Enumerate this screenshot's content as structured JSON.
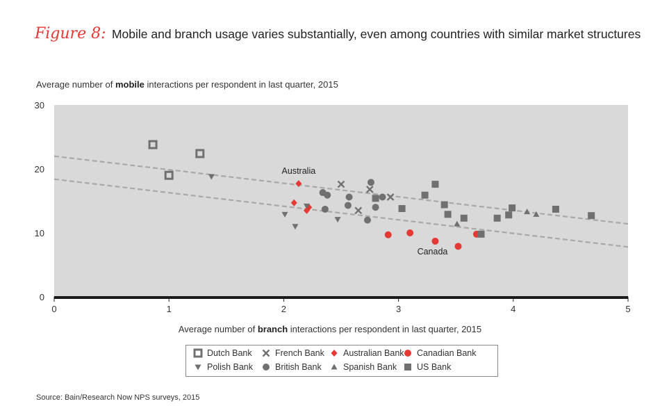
{
  "figure": {
    "label": "Figure 8:",
    "title": "Mobile and branch usage varies substantially, even among countries with similar market structures"
  },
  "axis_text": {
    "y_pre": "Average number of ",
    "y_bold": "mobile",
    "y_post": " interactions per respondent in last quarter, 2015",
    "x_pre": "Average number of ",
    "x_bold": "branch",
    "x_post": " interactions per respondent in last quarter, 2015"
  },
  "source": "Source: Bain/Research Now NPS surveys, 2015",
  "colors": {
    "plot_bg": "#d9d9d9",
    "gray_marker": "#707070",
    "red_marker": "#e53935",
    "trend": "#a8a8a8"
  },
  "chart_data": {
    "type": "scatter",
    "title": "Mobile and branch usage varies substantially, even among countries with similar market structures",
    "xlabel": "Average number of branch interactions per respondent in last quarter, 2015",
    "ylabel": "Average number of mobile interactions per respondent in last quarter, 2015",
    "xlim": [
      0,
      5
    ],
    "ylim": [
      0,
      30
    ],
    "xticks": [
      0,
      1,
      2,
      3,
      4,
      5
    ],
    "yticks": [
      0,
      10,
      20,
      30
    ],
    "grid": false,
    "legend_position": "bottom",
    "series": [
      {
        "name": "Dutch Bank",
        "marker": "square-open",
        "color": "#707070",
        "points": [
          [
            0.86,
            23.8
          ],
          [
            1.0,
            19.0
          ],
          [
            1.27,
            22.4
          ]
        ]
      },
      {
        "name": "French Bank",
        "marker": "x",
        "color": "#707070",
        "points": [
          [
            2.5,
            17.6
          ],
          [
            2.75,
            16.8
          ],
          [
            2.65,
            13.5
          ],
          [
            2.93,
            15.6
          ]
        ]
      },
      {
        "name": "Australian Bank",
        "marker": "diamond",
        "color": "#e53935",
        "points": [
          [
            2.13,
            17.7
          ],
          [
            2.09,
            14.7
          ],
          [
            2.22,
            14.0
          ],
          [
            2.2,
            13.5
          ]
        ]
      },
      {
        "name": "Canadian Bank",
        "marker": "circle",
        "color": "#e53935",
        "points": [
          [
            2.91,
            9.7
          ],
          [
            3.1,
            10.0
          ],
          [
            3.32,
            8.7
          ],
          [
            3.52,
            7.9
          ],
          [
            3.68,
            9.8
          ]
        ]
      },
      {
        "name": "Polish Bank",
        "marker": "triangle-down",
        "color": "#707070",
        "points": [
          [
            1.37,
            18.8
          ],
          [
            2.01,
            12.9
          ],
          [
            2.1,
            11.0
          ],
          [
            2.2,
            14.2
          ],
          [
            2.47,
            12.1
          ]
        ]
      },
      {
        "name": "British Bank",
        "marker": "circle",
        "color": "#707070",
        "points": [
          [
            2.34,
            16.3
          ],
          [
            2.38,
            15.9
          ],
          [
            2.36,
            13.7
          ],
          [
            2.57,
            15.6
          ],
          [
            2.56,
            14.3
          ],
          [
            2.76,
            17.9
          ],
          [
            2.86,
            15.6
          ],
          [
            2.8,
            14.0
          ],
          [
            2.73,
            12.0
          ]
        ]
      },
      {
        "name": "Spanish Bank",
        "marker": "triangle-up",
        "color": "#707070",
        "points": [
          [
            3.51,
            11.4
          ],
          [
            4.12,
            13.3
          ],
          [
            4.2,
            12.9
          ]
        ]
      },
      {
        "name": "US Bank",
        "marker": "square",
        "color": "#707070",
        "points": [
          [
            2.8,
            15.4
          ],
          [
            3.03,
            13.8
          ],
          [
            3.23,
            15.9
          ],
          [
            3.32,
            17.6
          ],
          [
            3.4,
            14.4
          ],
          [
            3.43,
            12.9
          ],
          [
            3.57,
            12.3
          ],
          [
            3.72,
            9.8
          ],
          [
            3.86,
            12.3
          ],
          [
            3.96,
            12.8
          ],
          [
            3.99,
            13.9
          ],
          [
            4.37,
            13.7
          ],
          [
            4.68,
            12.7
          ]
        ]
      }
    ],
    "trendlines": [
      {
        "from": [
          0,
          22.0
        ],
        "to": [
          5,
          11.4
        ]
      },
      {
        "from": [
          0,
          18.4
        ],
        "to": [
          5,
          7.8
        ]
      }
    ],
    "annotations": [
      {
        "text": "Australia",
        "x": 2.13,
        "y": 17.7
      },
      {
        "text": "Canada",
        "x": 3.32,
        "y": 8.7
      }
    ]
  }
}
